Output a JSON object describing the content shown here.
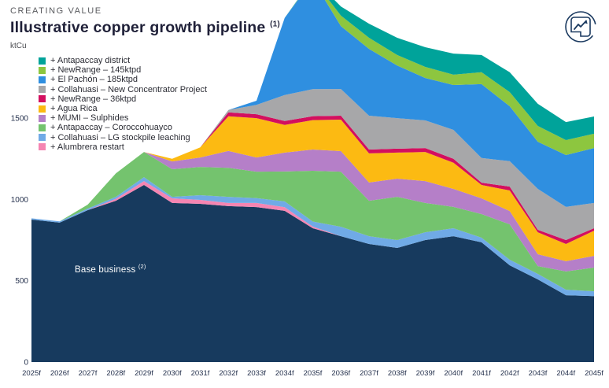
{
  "header": {
    "eyebrow": "CREATING VALUE",
    "title": "Illustrative copper growth pipeline",
    "title_sup": "(1)",
    "unit_label": "ktCu"
  },
  "icon": {
    "name": "growth-trend-icon",
    "stroke_color": "#1b3a60"
  },
  "base_area_label": {
    "text": "Base business",
    "sup": "(2)"
  },
  "chart_data": {
    "type": "area",
    "stacked": true,
    "title": "Illustrative copper growth pipeline (1)",
    "ylabel": "ktCu",
    "y_ticks": [
      0,
      500,
      1000,
      1500
    ],
    "y_visible_top": 2226,
    "grid": false,
    "legend_position": "top-left",
    "x": [
      "2025f",
      "2026f",
      "2027f",
      "2028f",
      "2029f",
      "2030f",
      "2031f",
      "2032f",
      "2033f",
      "2034f",
      "2035f",
      "2036f",
      "2037f",
      "2038f",
      "2039f",
      "2040f",
      "2041f",
      "2042f",
      "2043f",
      "2044f",
      "2045f"
    ],
    "series": [
      {
        "name": "Base business (2)",
        "color": "#173a5e",
        "values": [
          876,
          857,
          934,
          992,
          1089,
          978,
          973,
          959,
          953,
          930,
          823,
          774,
          726,
          702,
          750,
          774,
          736,
          595,
          508,
          411,
          405
        ]
      },
      {
        "name": "Alumbrera restart",
        "color": "#f585b2",
        "values": [
          0,
          0,
          0,
          12,
          24,
          29,
          24,
          19,
          25,
          22,
          10,
          0,
          0,
          0,
          0,
          0,
          0,
          0,
          0,
          0,
          0
        ]
      },
      {
        "name": "Collahuasi – LG stockpile leaching",
        "color": "#70aae6",
        "values": [
          8,
          8,
          10,
          12,
          24,
          9,
          29,
          38,
          30,
          36,
          31,
          58,
          48,
          48,
          48,
          49,
          29,
          34,
          34,
          34,
          30
        ]
      },
      {
        "name": "Antapaccay – Coroccohuayco",
        "color": "#74c36e",
        "values": [
          0,
          0,
          24,
          144,
          155,
          170,
          174,
          178,
          163,
          184,
          312,
          339,
          218,
          266,
          180,
          131,
          145,
          218,
          48,
          112,
          146
        ]
      },
      {
        "name": "MUMI – Sulphides",
        "color": "#b57fc8",
        "values": [
          0,
          0,
          0,
          0,
          0,
          48,
          58,
          104,
          87,
          116,
          131,
          126,
          112,
          112,
          135,
          111,
          97,
          82,
          73,
          63,
          72
        ]
      },
      {
        "name": "Agua Rica",
        "color": "#fcba12",
        "values": [
          0,
          0,
          0,
          0,
          0,
          16,
          62,
          213,
          242,
          170,
          181,
          194,
          179,
          160,
          179,
          161,
          82,
          126,
          135,
          106,
          155
        ]
      },
      {
        "name": "NewRange – 36ktpd",
        "color": "#d30f5f",
        "values": [
          0,
          0,
          0,
          0,
          0,
          0,
          0,
          25,
          24,
          24,
          24,
          24,
          24,
          24,
          24,
          24,
          14,
          24,
          15,
          24,
          15
        ]
      },
      {
        "name": "Collahuasi – New Concentrator Project",
        "color": "#a7a7a9",
        "values": [
          0,
          0,
          0,
          0,
          0,
          0,
          0,
          14,
          58,
          160,
          166,
          164,
          208,
          188,
          170,
          178,
          152,
          156,
          252,
          204,
          155
        ]
      },
      {
        "name": "El Pachón – 185ktpd",
        "color": "#2f8fe0",
        "values": [
          0,
          0,
          0,
          0,
          0,
          0,
          0,
          0,
          25,
          474,
          672,
          387,
          411,
          324,
          261,
          276,
          454,
          338,
          290,
          319,
          338
        ]
      },
      {
        "name": "NewRange – 145ktpd",
        "color": "#8dc63f",
        "values": [
          0,
          0,
          0,
          0,
          0,
          0,
          0,
          0,
          0,
          0,
          5,
          64,
          68,
          64,
          68,
          63,
          73,
          87,
          97,
          92,
          88
        ]
      },
      {
        "name": "Antapaccay district",
        "color": "#00a39a",
        "values": [
          0,
          0,
          0,
          0,
          0,
          0,
          0,
          0,
          0,
          0,
          5,
          57,
          87,
          106,
          121,
          130,
          106,
          122,
          136,
          111,
          106
        ]
      }
    ],
    "legend": [
      {
        "label": "+ Antapaccay district",
        "color": "#00a39a"
      },
      {
        "label": "+ NewRange – 145ktpd",
        "color": "#8dc63f"
      },
      {
        "label": "+ El Pachón – 185ktpd",
        "color": "#2f8fe0"
      },
      {
        "label": "+ Collahuasi – New Concentrator Project",
        "color": "#a7a7a9"
      },
      {
        "label": "+ NewRange – 36ktpd",
        "color": "#d30f5f"
      },
      {
        "label": "+ Agua Rica",
        "color": "#fcba12"
      },
      {
        "label": "+ MUMI – Sulphides",
        "color": "#b57fc8"
      },
      {
        "label": "+ Antapaccay – Coroccohuayco",
        "color": "#74c36e"
      },
      {
        "label": "+ Collahuasi – LG stockpile leaching",
        "color": "#70aae6"
      },
      {
        "label": "+ Alumbrera restart",
        "color": "#f585b2"
      }
    ]
  }
}
